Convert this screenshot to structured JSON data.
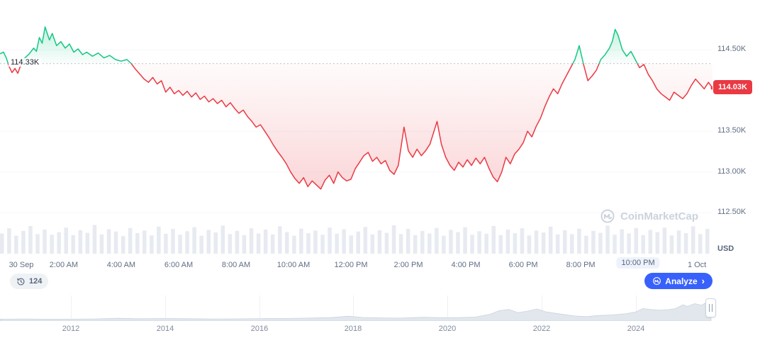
{
  "watermark": {
    "text": "CoinMarketCap"
  },
  "badges": {
    "history_count": "124",
    "analyze_label": "Analyze",
    "analyze_chevron": "›"
  },
  "chart": {
    "baseline_label": "114.33K",
    "price_badge": "114.03K",
    "y_axis_unit": "USD"
  },
  "chart_data": {
    "type": "line",
    "open_price": 114.33,
    "last_price": 114.03,
    "unit": "thousand USD",
    "xlim": [
      -0.22,
      24.59
    ],
    "ylim": [
      111.98,
      115.11
    ],
    "colors": {
      "up": "#16c784",
      "down": "#ea3943",
      "volume": "#e7eaf1",
      "baseline": "#b9c0cc",
      "accent": "#3861fb"
    },
    "y_ticks": [
      {
        "label": "114.50K",
        "price": 114.5
      },
      {
        "label": "113.50K",
        "price": 113.5
      },
      {
        "label": "113.00K",
        "price": 113.0
      },
      {
        "label": "112.50K",
        "price": 112.5
      }
    ],
    "x_ticks": [
      {
        "label": "30 Sep",
        "t": 0.52
      },
      {
        "label": "2:00 AM",
        "t": 2
      },
      {
        "label": "4:00 AM",
        "t": 4
      },
      {
        "label": "6:00 AM",
        "t": 6
      },
      {
        "label": "8:00 AM",
        "t": 8
      },
      {
        "label": "10:00 AM",
        "t": 10
      },
      {
        "label": "12:00 PM",
        "t": 12
      },
      {
        "label": "2:00 PM",
        "t": 14
      },
      {
        "label": "4:00 PM",
        "t": 16
      },
      {
        "label": "6:00 PM",
        "t": 18
      },
      {
        "label": "8:00 PM",
        "t": 20
      },
      {
        "label": "10:00 PM",
        "t": 22,
        "highlight": true
      },
      {
        "label": "1 Oct",
        "t": 24.05
      }
    ],
    "points": [
      [
        -0.22,
        114.45
      ],
      [
        -0.1,
        114.47
      ],
      [
        0.0,
        114.4
      ],
      [
        0.1,
        114.29
      ],
      [
        0.2,
        114.22
      ],
      [
        0.3,
        114.27
      ],
      [
        0.4,
        114.21
      ],
      [
        0.5,
        114.31
      ],
      [
        0.65,
        114.4
      ],
      [
        0.8,
        114.45
      ],
      [
        0.95,
        114.52
      ],
      [
        1.05,
        114.48
      ],
      [
        1.15,
        114.65
      ],
      [
        1.25,
        114.58
      ],
      [
        1.35,
        114.78
      ],
      [
        1.5,
        114.62
      ],
      [
        1.6,
        114.7
      ],
      [
        1.75,
        114.55
      ],
      [
        1.9,
        114.6
      ],
      [
        2.05,
        114.52
      ],
      [
        2.2,
        114.57
      ],
      [
        2.35,
        114.47
      ],
      [
        2.5,
        114.51
      ],
      [
        2.65,
        114.44
      ],
      [
        2.8,
        114.47
      ],
      [
        3.0,
        114.42
      ],
      [
        3.2,
        114.46
      ],
      [
        3.4,
        114.4
      ],
      [
        3.6,
        114.43
      ],
      [
        3.8,
        114.38
      ],
      [
        4.0,
        114.36
      ],
      [
        4.2,
        114.38
      ],
      [
        4.35,
        114.33
      ],
      [
        4.5,
        114.26
      ],
      [
        4.65,
        114.2
      ],
      [
        4.8,
        114.14
      ],
      [
        4.95,
        114.1
      ],
      [
        5.1,
        114.16
      ],
      [
        5.25,
        114.08
      ],
      [
        5.4,
        114.12
      ],
      [
        5.55,
        113.98
      ],
      [
        5.7,
        114.04
      ],
      [
        5.85,
        113.96
      ],
      [
        6.0,
        114.0
      ],
      [
        6.15,
        113.94
      ],
      [
        6.3,
        113.99
      ],
      [
        6.45,
        113.92
      ],
      [
        6.6,
        113.97
      ],
      [
        6.75,
        113.89
      ],
      [
        6.9,
        113.93
      ],
      [
        7.05,
        113.86
      ],
      [
        7.2,
        113.9
      ],
      [
        7.35,
        113.84
      ],
      [
        7.5,
        113.88
      ],
      [
        7.65,
        113.8
      ],
      [
        7.8,
        113.85
      ],
      [
        7.95,
        113.78
      ],
      [
        8.1,
        113.72
      ],
      [
        8.25,
        113.76
      ],
      [
        8.4,
        113.68
      ],
      [
        8.55,
        113.62
      ],
      [
        8.7,
        113.55
      ],
      [
        8.85,
        113.58
      ],
      [
        9.0,
        113.5
      ],
      [
        9.15,
        113.42
      ],
      [
        9.3,
        113.33
      ],
      [
        9.45,
        113.25
      ],
      [
        9.6,
        113.18
      ],
      [
        9.75,
        113.1
      ],
      [
        9.9,
        113.0
      ],
      [
        10.05,
        112.92
      ],
      [
        10.2,
        112.86
      ],
      [
        10.35,
        112.93
      ],
      [
        10.5,
        112.82
      ],
      [
        10.65,
        112.89
      ],
      [
        10.8,
        112.84
      ],
      [
        10.95,
        112.79
      ],
      [
        11.1,
        112.9
      ],
      [
        11.25,
        112.96
      ],
      [
        11.4,
        112.86
      ],
      [
        11.55,
        113.0
      ],
      [
        11.7,
        112.93
      ],
      [
        11.85,
        112.89
      ],
      [
        12.0,
        112.91
      ],
      [
        12.15,
        113.04
      ],
      [
        12.3,
        113.12
      ],
      [
        12.45,
        113.2
      ],
      [
        12.6,
        113.24
      ],
      [
        12.75,
        113.13
      ],
      [
        12.9,
        113.18
      ],
      [
        13.05,
        113.1
      ],
      [
        13.2,
        113.14
      ],
      [
        13.35,
        113.02
      ],
      [
        13.5,
        112.97
      ],
      [
        13.65,
        113.08
      ],
      [
        13.85,
        113.55
      ],
      [
        14.0,
        113.26
      ],
      [
        14.15,
        113.18
      ],
      [
        14.3,
        113.28
      ],
      [
        14.45,
        113.2
      ],
      [
        14.6,
        113.26
      ],
      [
        14.75,
        113.34
      ],
      [
        15.0,
        113.62
      ],
      [
        15.15,
        113.34
      ],
      [
        15.3,
        113.18
      ],
      [
        15.45,
        113.08
      ],
      [
        15.6,
        113.02
      ],
      [
        15.75,
        113.12
      ],
      [
        15.9,
        113.06
      ],
      [
        16.05,
        113.15
      ],
      [
        16.2,
        113.08
      ],
      [
        16.35,
        113.17
      ],
      [
        16.5,
        113.1
      ],
      [
        16.65,
        113.18
      ],
      [
        16.8,
        113.05
      ],
      [
        16.95,
        112.94
      ],
      [
        17.1,
        112.88
      ],
      [
        17.25,
        113.0
      ],
      [
        17.4,
        113.18
      ],
      [
        17.55,
        113.1
      ],
      [
        17.7,
        113.22
      ],
      [
        17.85,
        113.28
      ],
      [
        18.0,
        113.36
      ],
      [
        18.15,
        113.5
      ],
      [
        18.3,
        113.43
      ],
      [
        18.45,
        113.56
      ],
      [
        18.6,
        113.66
      ],
      [
        18.75,
        113.8
      ],
      [
        18.9,
        113.92
      ],
      [
        19.05,
        114.02
      ],
      [
        19.2,
        113.96
      ],
      [
        19.35,
        114.08
      ],
      [
        19.5,
        114.18
      ],
      [
        19.65,
        114.28
      ],
      [
        19.8,
        114.38
      ],
      [
        19.95,
        114.55
      ],
      [
        20.1,
        114.32
      ],
      [
        20.25,
        114.12
      ],
      [
        20.4,
        114.18
      ],
      [
        20.55,
        114.25
      ],
      [
        20.7,
        114.38
      ],
      [
        20.85,
        114.44
      ],
      [
        21.0,
        114.52
      ],
      [
        21.1,
        114.6
      ],
      [
        21.2,
        114.75
      ],
      [
        21.3,
        114.68
      ],
      [
        21.45,
        114.5
      ],
      [
        21.6,
        114.42
      ],
      [
        21.75,
        114.48
      ],
      [
        21.9,
        114.38
      ],
      [
        22.05,
        114.28
      ],
      [
        22.2,
        114.32
      ],
      [
        22.35,
        114.2
      ],
      [
        22.5,
        114.12
      ],
      [
        22.65,
        114.02
      ],
      [
        22.8,
        113.96
      ],
      [
        22.95,
        113.92
      ],
      [
        23.1,
        113.88
      ],
      [
        23.25,
        113.98
      ],
      [
        23.4,
        113.94
      ],
      [
        23.55,
        113.9
      ],
      [
        23.7,
        113.96
      ],
      [
        23.85,
        114.06
      ],
      [
        24.0,
        114.14
      ],
      [
        24.15,
        114.08
      ],
      [
        24.3,
        114.02
      ],
      [
        24.45,
        114.1
      ],
      [
        24.59,
        114.03
      ]
    ],
    "volume_bars": [
      0.62,
      0.78,
      0.55,
      0.7,
      0.85,
      0.6,
      0.74,
      0.58,
      0.66,
      0.8,
      0.57,
      0.72,
      0.64,
      0.88,
      0.59,
      0.75,
      0.68,
      0.54,
      0.79,
      0.63,
      0.71,
      0.56,
      0.83,
      0.61,
      0.76,
      0.58,
      0.69,
      0.81,
      0.55,
      0.73,
      0.65,
      0.86,
      0.6,
      0.7,
      0.57,
      0.78,
      0.62,
      0.74,
      0.59,
      0.84,
      0.66,
      0.55,
      0.77,
      0.63,
      0.71,
      0.58,
      0.8,
      0.61,
      0.75,
      0.56,
      0.68,
      0.82,
      0.59,
      0.72,
      0.64,
      0.87,
      0.6,
      0.76,
      0.57,
      0.7,
      0.62,
      0.79,
      0.55,
      0.73,
      0.66,
      0.81,
      0.58,
      0.69,
      0.61,
      0.85,
      0.57,
      0.74,
      0.63,
      0.78,
      0.56,
      0.71,
      0.65,
      0.83,
      0.59,
      0.72,
      0.6,
      0.77,
      0.55,
      0.7,
      0.64,
      0.86,
      0.58,
      0.75,
      0.62,
      0.79,
      0.57,
      0.73,
      0.66,
      0.8,
      0.56,
      0.71,
      0.63,
      0.84,
      0.6,
      0.76
    ]
  },
  "timeline": {
    "years": [
      {
        "label": "2012",
        "year": 2012
      },
      {
        "label": "2014",
        "year": 2014
      },
      {
        "label": "2016",
        "year": 2016
      },
      {
        "label": "2018",
        "year": 2018
      },
      {
        "label": "2020",
        "year": 2020
      },
      {
        "label": "2022",
        "year": 2022
      },
      {
        "label": "2024",
        "year": 2024
      }
    ],
    "points": [
      [
        2010.5,
        0.02
      ],
      [
        2011,
        0.03
      ],
      [
        2011.4,
        0.02
      ],
      [
        2012,
        0.02
      ],
      [
        2012.5,
        0.03
      ],
      [
        2013,
        0.06
      ],
      [
        2013.4,
        0.04
      ],
      [
        2014,
        0.05
      ],
      [
        2014.5,
        0.04
      ],
      [
        2015,
        0.03
      ],
      [
        2015.5,
        0.035
      ],
      [
        2016,
        0.045
      ],
      [
        2016.5,
        0.05
      ],
      [
        2017,
        0.07
      ],
      [
        2017.5,
        0.09
      ],
      [
        2017.9,
        0.16
      ],
      [
        2018.2,
        0.1
      ],
      [
        2018.6,
        0.08
      ],
      [
        2019,
        0.07
      ],
      [
        2019.5,
        0.11
      ],
      [
        2019.8,
        0.09
      ],
      [
        2020.2,
        0.09
      ],
      [
        2020.6,
        0.12
      ],
      [
        2020.9,
        0.25
      ],
      [
        2021.1,
        0.42
      ],
      [
        2021.3,
        0.48
      ],
      [
        2021.5,
        0.33
      ],
      [
        2021.7,
        0.4
      ],
      [
        2021.9,
        0.5
      ],
      [
        2022.1,
        0.36
      ],
      [
        2022.4,
        0.26
      ],
      [
        2022.7,
        0.17
      ],
      [
        2022.95,
        0.14
      ],
      [
        2023.2,
        0.19
      ],
      [
        2023.5,
        0.22
      ],
      [
        2023.8,
        0.28
      ],
      [
        2024.0,
        0.36
      ],
      [
        2024.15,
        0.52
      ],
      [
        2024.3,
        0.48
      ],
      [
        2024.5,
        0.44
      ],
      [
        2024.7,
        0.47
      ],
      [
        2024.85,
        0.52
      ],
      [
        2025.0,
        0.7
      ],
      [
        2025.1,
        0.62
      ],
      [
        2025.25,
        0.75
      ],
      [
        2025.4,
        0.68
      ],
      [
        2025.5,
        0.8
      ],
      [
        2025.6,
        0.95
      ]
    ]
  }
}
